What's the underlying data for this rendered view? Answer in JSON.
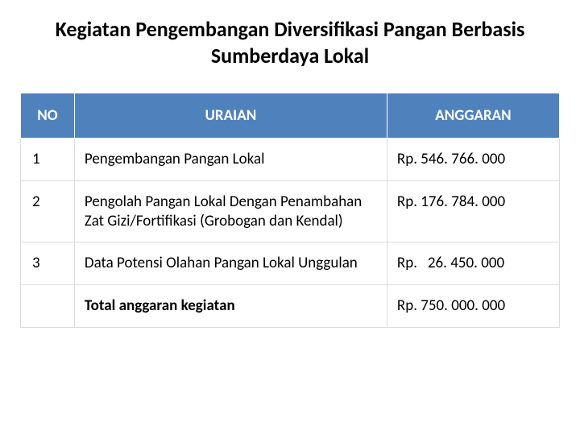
{
  "title": "Kegiatan Pengembangan Diversifikasi Pangan Berbasis Sumberdaya Lokal",
  "table": {
    "headers": {
      "no": "NO",
      "uraian": "URAIAN",
      "anggaran": "ANGGARAN"
    },
    "rows": [
      {
        "no": "1",
        "uraian": "Pengembangan Pangan Lokal",
        "anggaran": "Rp. 546. 766. 000"
      },
      {
        "no": "2",
        "uraian": "Pengolah Pangan Lokal Dengan Penambahan Zat Gizi/Fortifikasi (Grobogan dan Kendal)",
        "anggaran": "Rp. 176. 784. 000"
      },
      {
        "no": "3",
        "uraian": "Data Potensi Olahan Pangan Lokal Unggulan",
        "anggaran": "Rp.   26. 450. 000"
      }
    ],
    "total": {
      "no": "",
      "uraian": "Total anggaran kegiatan",
      "anggaran": "Rp. 750. 000. 000"
    },
    "colors": {
      "header_bg": "#4f81bd",
      "header_text": "#ffffff",
      "cell_bg": "#ffffff",
      "cell_text": "#000000",
      "border": "#dcdcdc"
    },
    "fontsize": {
      "title": 26,
      "header": 19,
      "cell": 19
    }
  }
}
